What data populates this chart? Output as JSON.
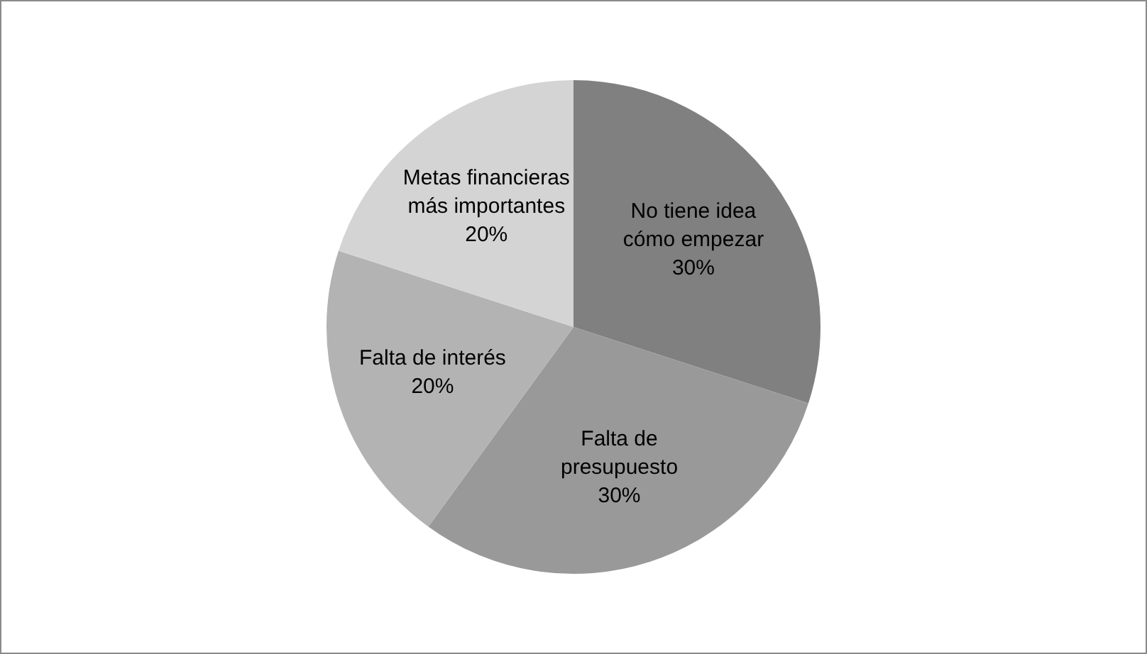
{
  "chart_data": {
    "type": "pie",
    "categories": [
      "No tiene idea cómo empezar",
      "Falta de presupuesto",
      "Falta de interés",
      "Metas financieras más importantes"
    ],
    "values": [
      30,
      30,
      20,
      20
    ],
    "value_labels": [
      "30%",
      "30%",
      "20%",
      "20%"
    ],
    "colors": [
      "#808080",
      "#999999",
      "#b3b3b3",
      "#d4d4d4"
    ]
  }
}
